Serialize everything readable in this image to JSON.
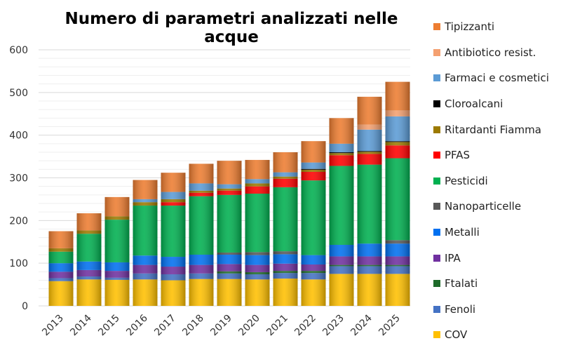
{
  "chart_data": {
    "type": "bar",
    "stacked": true,
    "title": "Numero di parametri analizzati nelle acque",
    "xlabel": "",
    "ylabel": "",
    "ylim": [
      0,
      600
    ],
    "yticks": [
      0,
      100,
      200,
      300,
      400,
      500,
      600
    ],
    "grid": true,
    "legend_position": "right",
    "categories": [
      "2013",
      "2014",
      "2015",
      "2016",
      "2017",
      "2018",
      "2019",
      "2020",
      "2021",
      "2022",
      "2023",
      "2024",
      "2025"
    ],
    "series": [
      {
        "name": "COV",
        "color": "#FFC000",
        "values": [
          58,
          62,
          61,
          62,
          60,
          63,
          63,
          62,
          64,
          62,
          75,
          75,
          75
        ]
      },
      {
        "name": "Fenoli",
        "color": "#4472C4",
        "values": [
          7,
          7,
          5,
          14,
          14,
          13,
          13,
          12,
          13,
          15,
          18,
          18,
          18
        ]
      },
      {
        "name": "Ftalati",
        "color": "#1E6B2A",
        "values": [
          0,
          0,
          0,
          0,
          0,
          0,
          5,
          5,
          5,
          5,
          3,
          3,
          3
        ]
      },
      {
        "name": "IPA",
        "color": "#7030A0",
        "values": [
          15,
          15,
          16,
          20,
          18,
          20,
          17,
          17,
          17,
          15,
          20,
          20,
          20
        ]
      },
      {
        "name": "Metalli",
        "color": "#0070F0",
        "values": [
          20,
          20,
          20,
          22,
          23,
          24,
          22,
          23,
          22,
          22,
          27,
          30,
          30
        ]
      },
      {
        "name": "Nanoparticelle",
        "color": "#595959",
        "values": [
          0,
          0,
          0,
          0,
          0,
          0,
          5,
          7,
          7,
          0,
          0,
          0,
          8
        ]
      },
      {
        "name": "Pesticidi",
        "color": "#00B050",
        "values": [
          27,
          65,
          100,
          117,
          120,
          137,
          135,
          137,
          150,
          175,
          185,
          185,
          192
        ]
      },
      {
        "name": "PFAS",
        "color": "#FF0000",
        "values": [
          0,
          0,
          0,
          0,
          8,
          8,
          10,
          17,
          20,
          20,
          25,
          25,
          30
        ]
      },
      {
        "name": "Ritardanti Fiamma",
        "color": "#9C7A00",
        "values": [
          8,
          8,
          8,
          8,
          7,
          5,
          5,
          7,
          5,
          5,
          5,
          5,
          8
        ]
      },
      {
        "name": "Cloroalcani",
        "color": "#000000",
        "values": [
          0,
          0,
          0,
          0,
          0,
          0,
          0,
          0,
          0,
          2,
          2,
          2,
          2
        ]
      },
      {
        "name": "Farmaci e cosmetici",
        "color": "#5B9BD5",
        "values": [
          0,
          0,
          0,
          7,
          17,
          17,
          10,
          10,
          10,
          15,
          20,
          50,
          58
        ]
      },
      {
        "name": "Antibiotico resist.",
        "color": "#F4A070",
        "values": [
          0,
          0,
          0,
          0,
          0,
          0,
          0,
          0,
          0,
          0,
          0,
          12,
          14
        ]
      },
      {
        "name": "Tipizzanti",
        "color": "#ED7D31",
        "values": [
          40,
          40,
          45,
          45,
          45,
          46,
          55,
          45,
          47,
          50,
          60,
          65,
          67
        ]
      }
    ]
  }
}
